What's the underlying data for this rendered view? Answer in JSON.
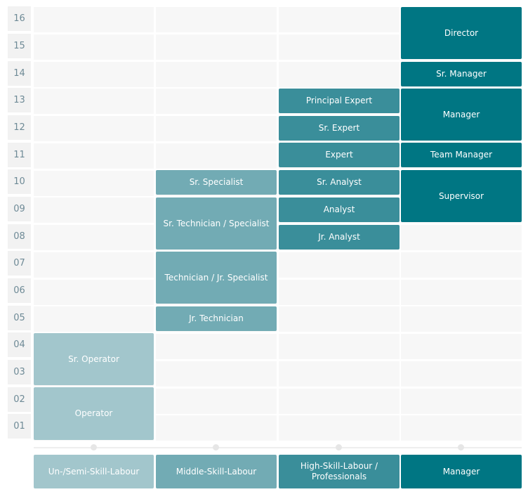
{
  "levels": [
    "16",
    "15",
    "14",
    "13",
    "12",
    "11",
    "10",
    "09",
    "08",
    "07",
    "06",
    "05",
    "04",
    "03",
    "02",
    "01"
  ],
  "columns": [
    {
      "label": "Un-/Semi-Skill-Labour",
      "color": "#a2c6cc"
    },
    {
      "label": "Middle-Skill-Labour",
      "color": "#72abb4"
    },
    {
      "label": "High-Skill-Labour / Professionals",
      "color": "#3a8e9a"
    },
    {
      "label": "Manager",
      "color": "#007683"
    }
  ],
  "roles": {
    "director": "Director",
    "sr_manager": "Sr. Manager",
    "manager": "Manager",
    "team_manager": "Team Manager",
    "supervisor": "Supervisor",
    "principal_expert": "Principal Expert",
    "sr_expert": "Sr. Expert",
    "expert": "Expert",
    "sr_analyst": "Sr. Analyst",
    "analyst": "Analyst",
    "jr_analyst": "Jr. Analyst",
    "sr_specialist": "Sr. Specialist",
    "sr_technician_specialist": "Sr. Technician / Specialist",
    "technician_jr_specialist": "Technician / Jr. Specialist",
    "jr_technician": "Jr. Technician",
    "sr_operator": "Sr. Operator",
    "operator": "Operator"
  }
}
